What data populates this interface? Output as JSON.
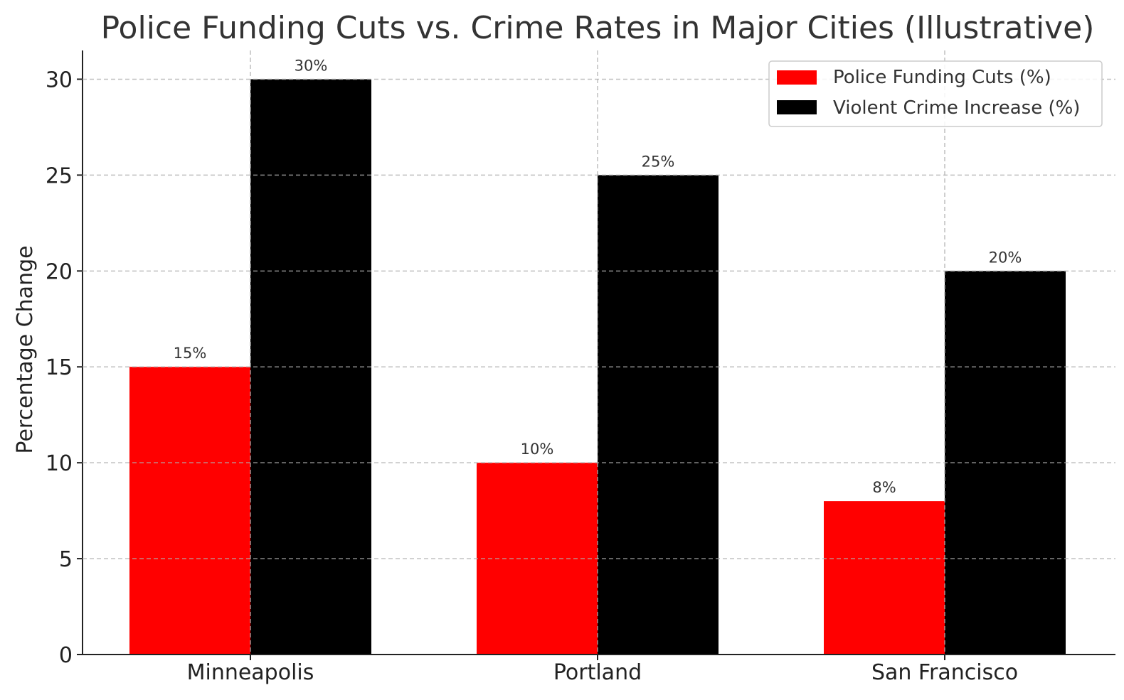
{
  "chart_data": {
    "type": "bar",
    "title": "Police Funding Cuts vs. Crime Rates in Major Cities (Illustrative)",
    "xlabel": "",
    "ylabel": "Percentage Change",
    "categories": [
      "Minneapolis",
      "Portland",
      "San Francisco"
    ],
    "series": [
      {
        "name": "Police Funding Cuts (%)",
        "color": "#ff0000",
        "values": [
          15,
          10,
          8
        ],
        "labels": [
          "15%",
          "10%",
          "8%"
        ]
      },
      {
        "name": "Violent Crime Increase (%)",
        "color": "#000000",
        "values": [
          30,
          25,
          20
        ],
        "labels": [
          "30%",
          "25%",
          "20%"
        ]
      }
    ],
    "ylim": [
      0,
      31.5
    ],
    "yticks": [
      0,
      5,
      10,
      15,
      20,
      25,
      30
    ],
    "ytick_labels": [
      "0",
      "5",
      "10",
      "15",
      "20",
      "25",
      "30"
    ],
    "grid": true,
    "legend_position": "top-right"
  }
}
